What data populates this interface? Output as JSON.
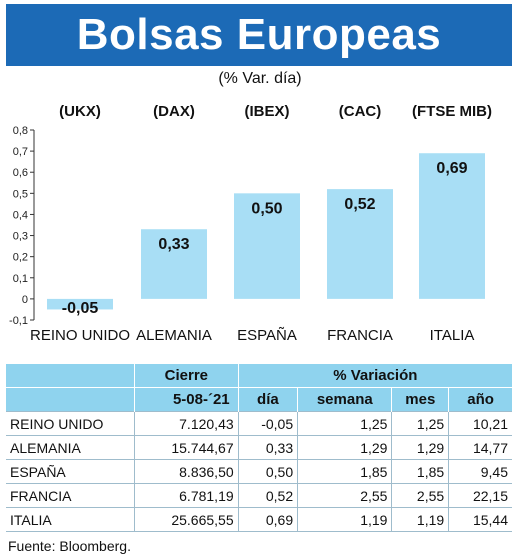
{
  "title": "Bolsas Europeas",
  "subtitle": "(% Var. día)",
  "chart_data": {
    "type": "bar",
    "categories": [
      "REINO UNIDO",
      "ALEMANIA",
      "ESPAÑA",
      "FRANCIA",
      "ITALIA"
    ],
    "codes": [
      "(UKX)",
      "(DAX)",
      "(IBEX)",
      "(CAC)",
      "(FTSE MIB)"
    ],
    "values": [
      -0.05,
      0.33,
      0.5,
      0.52,
      0.69
    ],
    "data_labels": [
      "-0,05",
      "0,33",
      "0,50",
      "0,52",
      "0,69"
    ],
    "yticks": [
      "0,8",
      "0,7",
      "0,6",
      "0,5",
      "0,4",
      "0,3",
      "0,2",
      "0,1",
      "0",
      "-0,1"
    ],
    "ylim": [
      -0.1,
      0.8
    ],
    "bar_color": "#a8def5",
    "grid": false
  },
  "table": {
    "header_cierre": "Cierre",
    "header_variacion": "% Variación",
    "date": "5-08-´21",
    "columns": [
      "día",
      "semana",
      "mes",
      "año"
    ],
    "rows": [
      {
        "name": "REINO UNIDO",
        "cierre": "7.120,43",
        "dia": "-0,05",
        "semana": "1,25",
        "mes": "1,25",
        "ano": "10,21"
      },
      {
        "name": "ALEMANIA",
        "cierre": "15.744,67",
        "dia": "0,33",
        "semana": "1,29",
        "mes": "1,29",
        "ano": "14,77"
      },
      {
        "name": "ESPAÑA",
        "cierre": "8.836,50",
        "dia": "0,50",
        "semana": "1,85",
        "mes": "1,85",
        "ano": "9,45"
      },
      {
        "name": "FRANCIA",
        "cierre": "6.781,19",
        "dia": "0,52",
        "semana": "2,55",
        "mes": "2,55",
        "ano": "22,15"
      },
      {
        "name": "ITALIA",
        "cierre": "25.665,55",
        "dia": "0,69",
        "semana": "1,19",
        "mes": "1,19",
        "ano": "15,44"
      }
    ]
  },
  "source": "Fuente: Bloomberg."
}
